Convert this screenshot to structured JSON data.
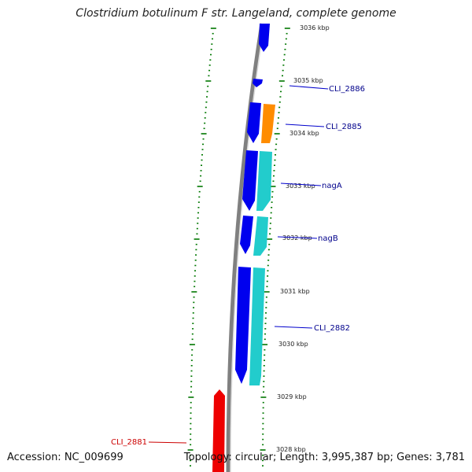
{
  "title": "Clostridium botulinum F str. Langeland, complete genome",
  "footer": {
    "accession": "Accession: NC_009699",
    "summary": "Topology: circular; Length: 3,995,387 bp; Genes: 3,781"
  },
  "colors": {
    "forward": "#0000ee",
    "reverse_cyan": "#22cccc",
    "orange": "#ff8c00",
    "red": "#ee0000",
    "backbone": "#808080",
    "ticks": "#007700",
    "label_blue": "#00008b",
    "label_red": "#cc0000"
  },
  "ticks": [
    {
      "label": "3036 kbp"
    },
    {
      "label": "3035 kbp"
    },
    {
      "label": "3034 kbp"
    },
    {
      "label": "3033 kbp"
    },
    {
      "label": "3032 kbp"
    },
    {
      "label": "3031 kbp"
    },
    {
      "label": "3030 kbp"
    },
    {
      "label": "3029 kbp"
    },
    {
      "label": "3028 kbp"
    }
  ],
  "gene_labels": [
    {
      "name": "CLI_2886",
      "color": "blue"
    },
    {
      "name": "CLI_2885",
      "color": "blue"
    },
    {
      "name": "nagA",
      "color": "blue"
    },
    {
      "name": "nagB",
      "color": "blue"
    },
    {
      "name": "CLI_2882",
      "color": "blue"
    },
    {
      "name": "CLI_2881",
      "color": "red"
    }
  ]
}
